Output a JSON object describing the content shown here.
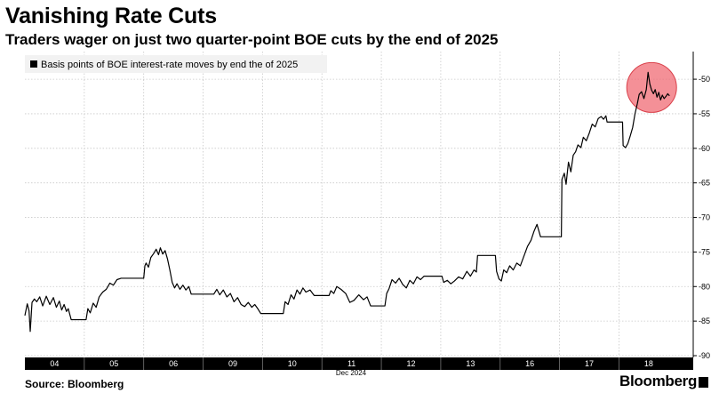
{
  "title": "Vanishing Rate Cuts",
  "subtitle": "Traders wager on just two quarter-point BOE cuts by the end of 2025",
  "source": "Source: Bloomberg",
  "brand": "Bloomberg",
  "chart_data": {
    "type": "line",
    "legend": "Basis points of BOE interest-rate moves by end the of 2025",
    "legend_position": "top-left",
    "grid": true,
    "xlabel": "Dec 2024",
    "ylim": [
      -90,
      -46
    ],
    "yticks": [
      -50,
      -55,
      -60,
      -65,
      -70,
      -75,
      -80,
      -85,
      -90
    ],
    "xticks": [
      {
        "label": "04",
        "t": 0.5
      },
      {
        "label": "05",
        "t": 1.5
      },
      {
        "label": "06",
        "t": 2.5
      },
      {
        "label": "09",
        "t": 3.5
      },
      {
        "label": "10",
        "t": 4.5
      },
      {
        "label": "11",
        "t": 5.5
      },
      {
        "label": "12",
        "t": 6.5
      },
      {
        "label": "13",
        "t": 7.5
      },
      {
        "label": "16",
        "t": 8.5
      },
      {
        "label": "17",
        "t": 9.5
      },
      {
        "label": "18",
        "t": 10.5
      }
    ],
    "x_extent": [
      0,
      11.25
    ],
    "series": [
      {
        "color": "#000000",
        "points": [
          [
            0.0,
            -84.2
          ],
          [
            0.04,
            -82.5
          ],
          [
            0.07,
            -83.5
          ],
          [
            0.09,
            -86.5
          ],
          [
            0.12,
            -82.3
          ],
          [
            0.16,
            -81.8
          ],
          [
            0.2,
            -82.2
          ],
          [
            0.25,
            -81.5
          ],
          [
            0.3,
            -82.8
          ],
          [
            0.36,
            -81.4
          ],
          [
            0.42,
            -82.6
          ],
          [
            0.48,
            -81.6
          ],
          [
            0.53,
            -83.0
          ],
          [
            0.58,
            -82.1
          ],
          [
            0.62,
            -83.4
          ],
          [
            0.66,
            -82.6
          ],
          [
            0.7,
            -83.6
          ],
          [
            0.73,
            -83.2
          ],
          [
            0.78,
            -84.8
          ],
          [
            0.95,
            -84.8
          ],
          [
            1.03,
            -84.8
          ],
          [
            1.06,
            -83.2
          ],
          [
            1.1,
            -83.8
          ],
          [
            1.15,
            -82.4
          ],
          [
            1.2,
            -83.0
          ],
          [
            1.25,
            -81.5
          ],
          [
            1.31,
            -80.8
          ],
          [
            1.37,
            -80.4
          ],
          [
            1.43,
            -79.5
          ],
          [
            1.49,
            -79.8
          ],
          [
            1.55,
            -79.0
          ],
          [
            1.62,
            -78.8
          ],
          [
            1.7,
            -78.8
          ],
          [
            1.78,
            -78.8
          ],
          [
            1.86,
            -78.8
          ],
          [
            1.94,
            -78.8
          ],
          [
            2.0,
            -78.8
          ],
          [
            2.02,
            -77.0
          ],
          [
            2.04,
            -76.6
          ],
          [
            2.08,
            -77.2
          ],
          [
            2.12,
            -75.8
          ],
          [
            2.17,
            -75.2
          ],
          [
            2.21,
            -74.6
          ],
          [
            2.25,
            -75.4
          ],
          [
            2.28,
            -74.4
          ],
          [
            2.32,
            -75.3
          ],
          [
            2.36,
            -74.8
          ],
          [
            2.4,
            -76.0
          ],
          [
            2.44,
            -77.6
          ],
          [
            2.48,
            -79.4
          ],
          [
            2.52,
            -80.2
          ],
          [
            2.56,
            -79.6
          ],
          [
            2.61,
            -80.4
          ],
          [
            2.66,
            -79.8
          ],
          [
            2.71,
            -80.5
          ],
          [
            2.76,
            -80.0
          ],
          [
            2.8,
            -81.1
          ],
          [
            3.0,
            -81.1
          ],
          [
            3.1,
            -81.1
          ],
          [
            3.18,
            -81.1
          ],
          [
            3.23,
            -80.4
          ],
          [
            3.28,
            -81.2
          ],
          [
            3.34,
            -80.5
          ],
          [
            3.4,
            -81.5
          ],
          [
            3.46,
            -81.0
          ],
          [
            3.52,
            -82.2
          ],
          [
            3.58,
            -81.6
          ],
          [
            3.64,
            -82.6
          ],
          [
            3.7,
            -82.9
          ],
          [
            3.76,
            -82.3
          ],
          [
            3.82,
            -83.0
          ],
          [
            3.87,
            -82.6
          ],
          [
            3.92,
            -83.2
          ],
          [
            3.97,
            -83.9
          ],
          [
            4.2,
            -83.9
          ],
          [
            4.35,
            -83.9
          ],
          [
            4.38,
            -82.2
          ],
          [
            4.43,
            -82.6
          ],
          [
            4.48,
            -81.2
          ],
          [
            4.53,
            -81.8
          ],
          [
            4.58,
            -80.5
          ],
          [
            4.63,
            -81.1
          ],
          [
            4.68,
            -80.2
          ],
          [
            4.73,
            -80.8
          ],
          [
            4.8,
            -80.5
          ],
          [
            4.87,
            -81.3
          ],
          [
            4.94,
            -81.3
          ],
          [
            5.05,
            -81.3
          ],
          [
            5.12,
            -81.3
          ],
          [
            5.15,
            -80.6
          ],
          [
            5.2,
            -81.0
          ],
          [
            5.25,
            -80.0
          ],
          [
            5.32,
            -80.4
          ],
          [
            5.4,
            -81.0
          ],
          [
            5.47,
            -82.3
          ],
          [
            5.54,
            -82.0
          ],
          [
            5.62,
            -81.2
          ],
          [
            5.7,
            -81.9
          ],
          [
            5.76,
            -81.5
          ],
          [
            5.82,
            -82.8
          ],
          [
            6.0,
            -82.8
          ],
          [
            6.06,
            -82.8
          ],
          [
            6.09,
            -81.0
          ],
          [
            6.13,
            -80.3
          ],
          [
            6.18,
            -79.0
          ],
          [
            6.24,
            -79.5
          ],
          [
            6.3,
            -78.8
          ],
          [
            6.36,
            -79.7
          ],
          [
            6.42,
            -80.2
          ],
          [
            6.48,
            -79.1
          ],
          [
            6.54,
            -79.6
          ],
          [
            6.6,
            -78.6
          ],
          [
            6.66,
            -79.0
          ],
          [
            6.72,
            -78.5
          ],
          [
            6.9,
            -78.5
          ],
          [
            7.02,
            -78.5
          ],
          [
            7.05,
            -79.4
          ],
          [
            7.11,
            -79.1
          ],
          [
            7.17,
            -79.6
          ],
          [
            7.23,
            -79.2
          ],
          [
            7.3,
            -78.6
          ],
          [
            7.37,
            -78.9
          ],
          [
            7.44,
            -77.8
          ],
          [
            7.5,
            -78.5
          ],
          [
            7.56,
            -77.6
          ],
          [
            7.6,
            -77.9
          ],
          [
            7.62,
            -75.5
          ],
          [
            7.8,
            -75.5
          ],
          [
            7.92,
            -75.5
          ],
          [
            7.94,
            -77.8
          ],
          [
            7.98,
            -78.9
          ],
          [
            8.02,
            -79.2
          ],
          [
            8.06,
            -77.6
          ],
          [
            8.11,
            -78.0
          ],
          [
            8.16,
            -77.0
          ],
          [
            8.22,
            -77.6
          ],
          [
            8.28,
            -76.6
          ],
          [
            8.34,
            -77.0
          ],
          [
            8.4,
            -75.6
          ],
          [
            8.46,
            -74.2
          ],
          [
            8.52,
            -73.3
          ],
          [
            8.57,
            -72.0
          ],
          [
            8.62,
            -71.0
          ],
          [
            8.66,
            -72.2
          ],
          [
            8.68,
            -72.8
          ],
          [
            9.0,
            -72.8
          ],
          [
            9.03,
            -72.8
          ],
          [
            9.04,
            -64.5
          ],
          [
            9.08,
            -63.6
          ],
          [
            9.11,
            -65.2
          ],
          [
            9.15,
            -62.0
          ],
          [
            9.19,
            -63.4
          ],
          [
            9.23,
            -61.0
          ],
          [
            9.27,
            -60.5
          ],
          [
            9.31,
            -59.5
          ],
          [
            9.36,
            -59.9
          ],
          [
            9.4,
            -58.4
          ],
          [
            9.45,
            -58.9
          ],
          [
            9.5,
            -57.8
          ],
          [
            9.55,
            -56.5
          ],
          [
            9.6,
            -56.9
          ],
          [
            9.65,
            -55.7
          ],
          [
            9.7,
            -55.4
          ],
          [
            9.74,
            -55.8
          ],
          [
            9.78,
            -55.3
          ],
          [
            9.8,
            -56.2
          ],
          [
            10.0,
            -56.2
          ],
          [
            10.06,
            -56.2
          ],
          [
            10.07,
            -59.6
          ],
          [
            10.11,
            -59.9
          ],
          [
            10.15,
            -59.3
          ],
          [
            10.19,
            -58.2
          ],
          [
            10.23,
            -57.0
          ],
          [
            10.27,
            -55.0
          ],
          [
            10.31,
            -53.5
          ],
          [
            10.34,
            -52.2
          ],
          [
            10.38,
            -51.8
          ],
          [
            10.42,
            -52.8
          ],
          [
            10.46,
            -51.5
          ],
          [
            10.49,
            -49.0
          ],
          [
            10.52,
            -50.7
          ],
          [
            10.55,
            -51.6
          ],
          [
            10.58,
            -52.1
          ],
          [
            10.61,
            -51.5
          ],
          [
            10.64,
            -52.6
          ],
          [
            10.67,
            -51.9
          ],
          [
            10.7,
            -53.0
          ],
          [
            10.73,
            -52.3
          ],
          [
            10.76,
            -52.8
          ],
          [
            10.79,
            -52.5
          ],
          [
            10.82,
            -52.1
          ],
          [
            10.85,
            -52.4
          ]
        ]
      }
    ],
    "highlight": {
      "x": 10.55,
      "y": -51.2,
      "color": "#f06b74"
    }
  }
}
